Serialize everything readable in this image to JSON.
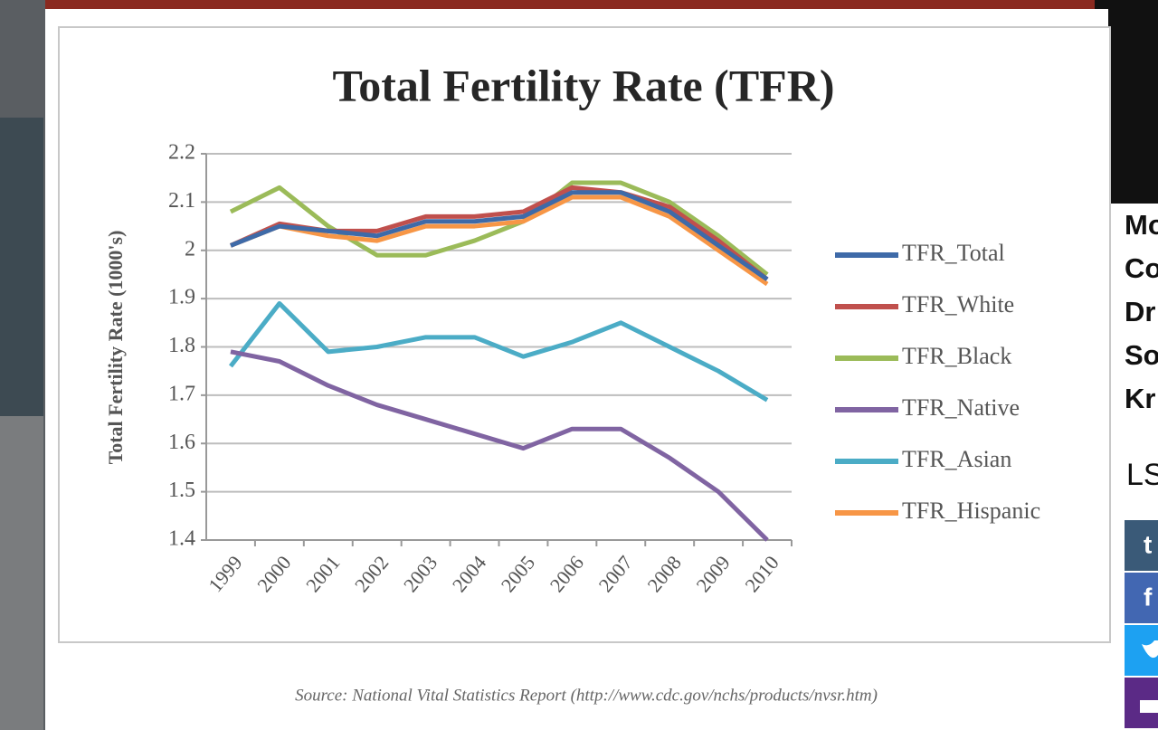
{
  "chart_data": {
    "type": "line",
    "title": "Total Fertility Rate (TFR)",
    "y_label": "Total Fertility Rate (1000's)",
    "source": "Source: National Vital Statistics Report (http://www.cdc.gov/nchs/products/nvsr.htm)",
    "categories": [
      "1999",
      "2000",
      "2001",
      "2002",
      "2003",
      "2004",
      "2005",
      "2006",
      "2007",
      "2008",
      "2009",
      "2010"
    ],
    "series": [
      {
        "name": "TFR_Total",
        "color": "#3e6aa8",
        "values": [
          2.01,
          2.05,
          2.04,
          2.03,
          2.06,
          2.06,
          2.07,
          2.12,
          2.12,
          2.08,
          2.01,
          1.94
        ]
      },
      {
        "name": "TFR_White",
        "color": "#c0504d",
        "values": [
          2.01,
          2.055,
          2.04,
          2.04,
          2.07,
          2.07,
          2.08,
          2.13,
          2.12,
          2.09,
          2.02,
          1.94
        ]
      },
      {
        "name": "TFR_Black",
        "color": "#9bbb59",
        "values": [
          2.08,
          2.13,
          2.05,
          1.99,
          1.99,
          2.02,
          2.06,
          2.14,
          2.14,
          2.1,
          2.03,
          1.95
        ]
      },
      {
        "name": "TFR_Native",
        "color": "#8064a2",
        "values": [
          1.79,
          1.77,
          1.72,
          1.68,
          1.65,
          1.62,
          1.59,
          1.63,
          1.63,
          1.57,
          1.5,
          1.4
        ]
      },
      {
        "name": "TFR_Asian",
        "color": "#4bacc6",
        "values": [
          1.76,
          1.89,
          1.79,
          1.8,
          1.82,
          1.82,
          1.78,
          1.81,
          1.85,
          1.8,
          1.75,
          1.69
        ]
      },
      {
        "name": "TFR_Hispanic",
        "color": "#f79646",
        "values": [
          2.01,
          2.05,
          2.03,
          2.02,
          2.05,
          2.05,
          2.06,
          2.11,
          2.11,
          2.07,
          2.0,
          1.93
        ]
      }
    ],
    "ylim": [
      1.4,
      2.2
    ],
    "yticks": [
      1.4,
      1.5,
      1.6,
      1.7,
      1.8,
      1.9,
      2,
      2.1,
      2.2
    ],
    "grid": true,
    "legend": "right"
  },
  "sidebar": {
    "lines": [
      "Mo",
      "Co",
      "Dr",
      "So",
      "Kr"
    ],
    "label": "LS",
    "share": [
      "t",
      "f"
    ]
  }
}
